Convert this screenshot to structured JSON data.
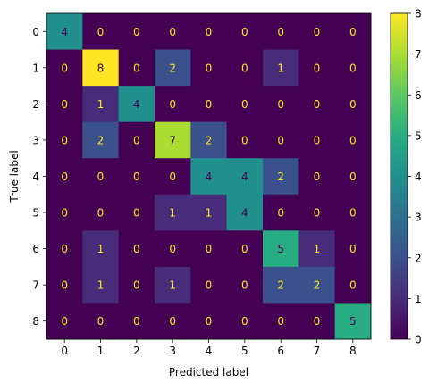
{
  "chart_data": {
    "type": "heatmap",
    "title": "",
    "xlabel": "Predicted label",
    "ylabel": "True label",
    "x_categories": [
      "0",
      "1",
      "2",
      "3",
      "4",
      "5",
      "6",
      "7",
      "8"
    ],
    "y_categories": [
      "0",
      "1",
      "2",
      "3",
      "4",
      "5",
      "6",
      "7",
      "8"
    ],
    "matrix": [
      [
        4,
        0,
        0,
        0,
        0,
        0,
        0,
        0,
        0
      ],
      [
        0,
        8,
        0,
        2,
        0,
        0,
        1,
        0,
        0
      ],
      [
        0,
        1,
        4,
        0,
        0,
        0,
        0,
        0,
        0
      ],
      [
        0,
        2,
        0,
        7,
        2,
        0,
        0,
        0,
        0
      ],
      [
        0,
        0,
        0,
        0,
        4,
        4,
        2,
        0,
        0
      ],
      [
        0,
        0,
        0,
        1,
        1,
        4,
        0,
        0,
        0
      ],
      [
        0,
        1,
        0,
        0,
        0,
        0,
        5,
        1,
        0
      ],
      [
        0,
        1,
        0,
        1,
        0,
        0,
        2,
        2,
        0
      ],
      [
        0,
        0,
        0,
        0,
        0,
        0,
        0,
        0,
        5
      ]
    ],
    "value_range": [
      0,
      8
    ],
    "colorbar_ticks": [
      0,
      1,
      2,
      3,
      4,
      5,
      6,
      7,
      8
    ],
    "colormap": "viridis",
    "grid": false
  }
}
